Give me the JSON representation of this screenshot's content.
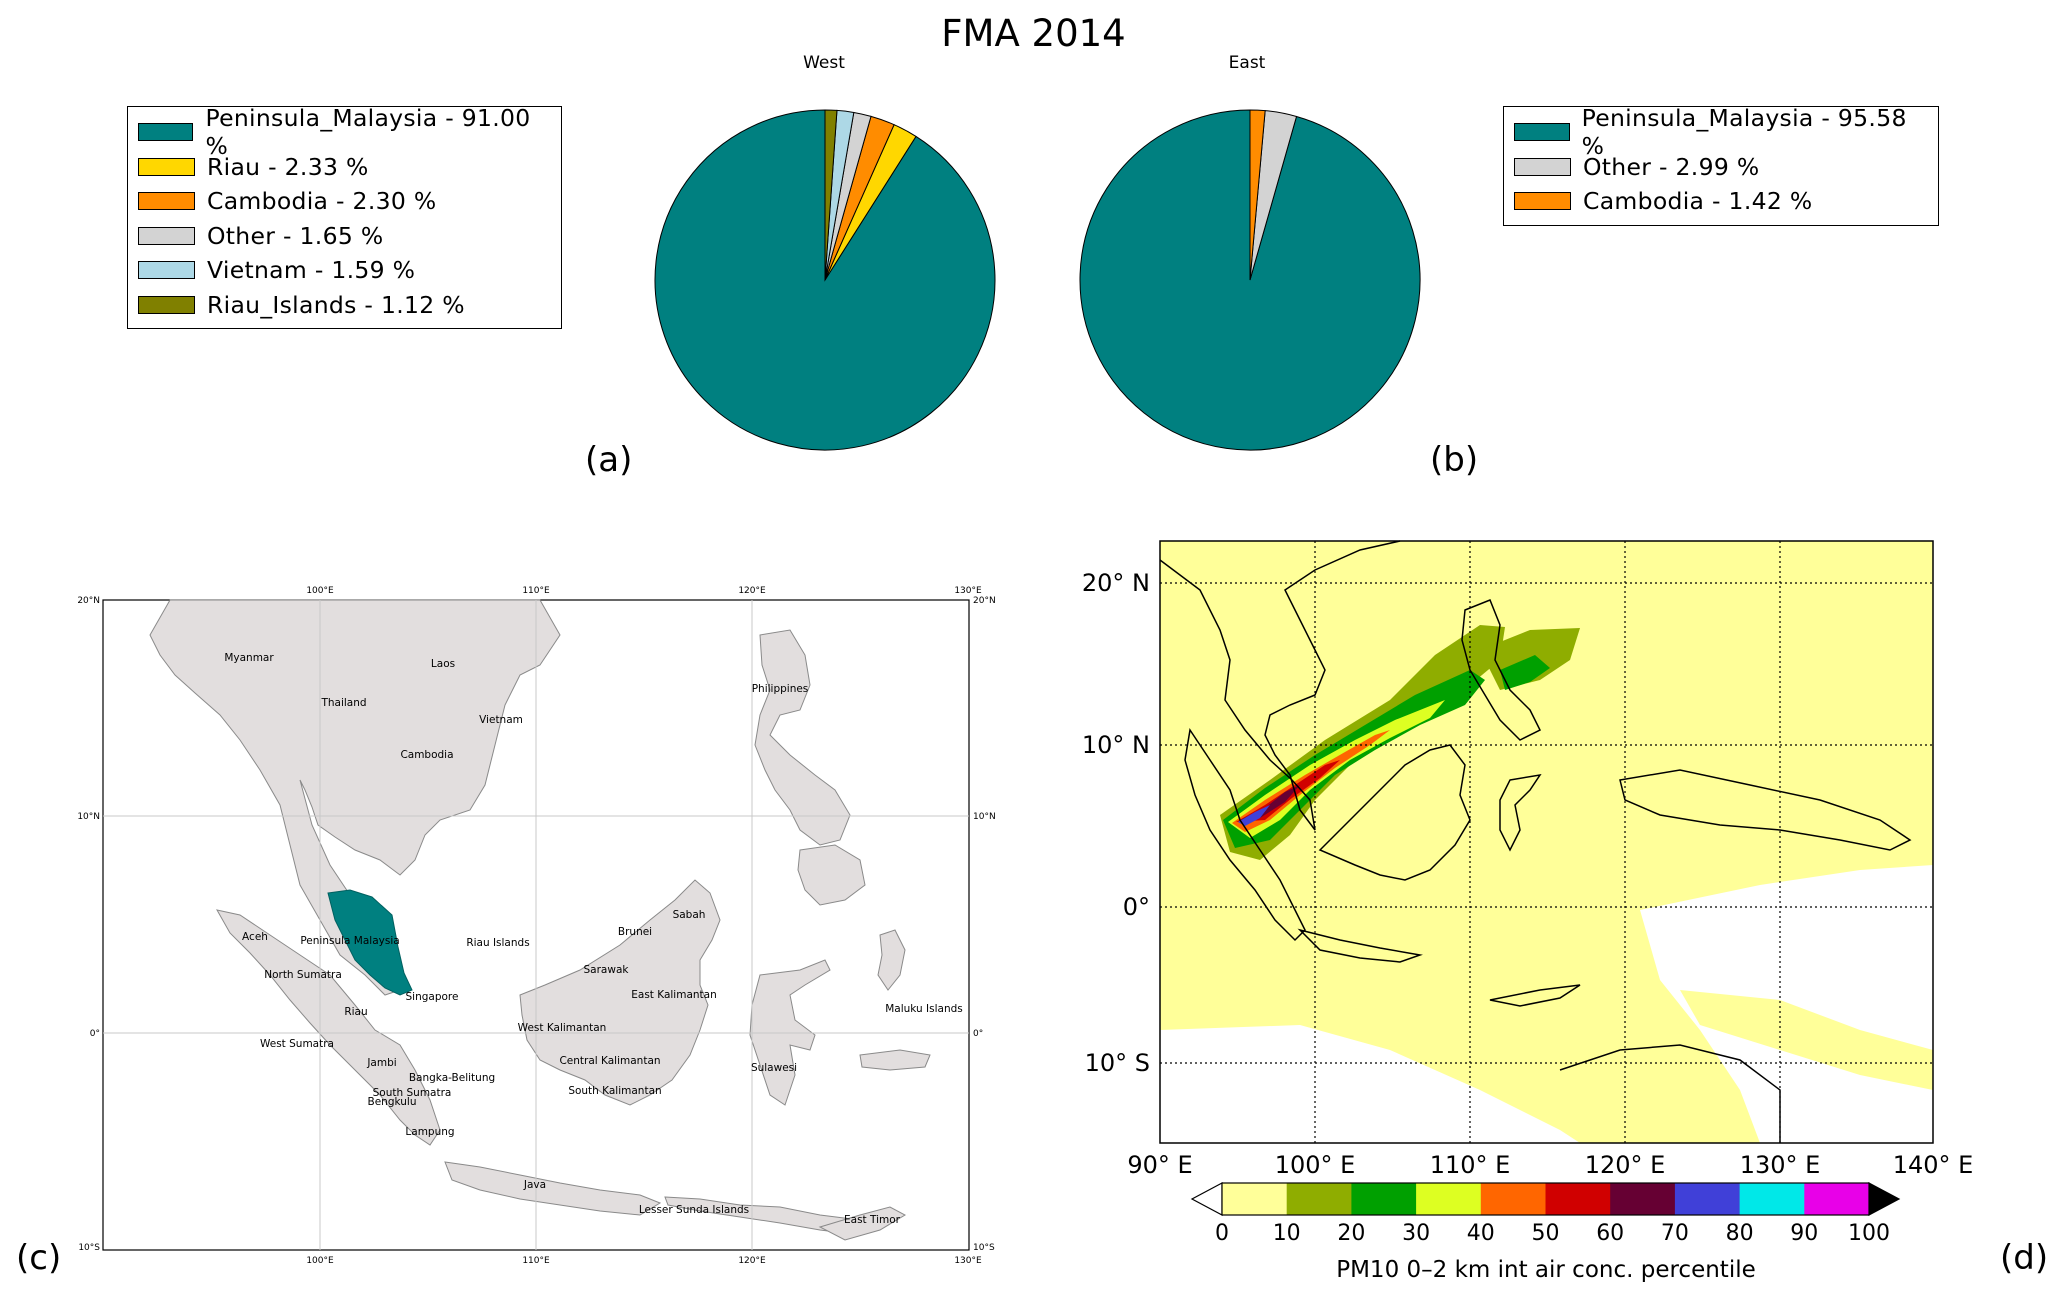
{
  "figure": {
    "title": "FMA 2014",
    "panel_labels": {
      "a": "(a)",
      "b": "(b)",
      "c": "(c)",
      "d": "(d)"
    }
  },
  "colors": {
    "Peninsula_Malaysia": "#008080",
    "Riau": "#ffd700",
    "Cambodia": "#ff8c00",
    "Other": "#d3d3d3",
    "Vietnam": "#add8e6",
    "Riau_Islands": "#808000"
  },
  "legend_west": [
    {
      "label": "Peninsula_Malaysia - 91.00 %",
      "color": "#008080"
    },
    {
      "label": "Riau - 2.33 %",
      "color": "#ffd700"
    },
    {
      "label": "Cambodia - 2.30 %",
      "color": "#ff8c00"
    },
    {
      "label": "Other - 1.65 %",
      "color": "#d3d3d3"
    },
    {
      "label": "Vietnam - 1.59 %",
      "color": "#add8e6"
    },
    {
      "label": "Riau_Islands - 1.12 %",
      "color": "#808000"
    }
  ],
  "legend_east": [
    {
      "label": "Peninsula_Malaysia - 95.58 %",
      "color": "#008080"
    },
    {
      "label": "Other - 2.99 %",
      "color": "#d3d3d3"
    },
    {
      "label": "Cambodia - 1.42 %",
      "color": "#ff8c00"
    }
  ],
  "chart_data": [
    {
      "type": "pie",
      "title": "West",
      "labels": [
        "Peninsula_Malaysia",
        "Riau",
        "Cambodia",
        "Other",
        "Vietnam",
        "Riau_Islands"
      ],
      "values": [
        91.0,
        2.33,
        2.3,
        1.65,
        1.59,
        1.12
      ],
      "colors": [
        "#008080",
        "#ffd700",
        "#ff8c00",
        "#d3d3d3",
        "#add8e6",
        "#808000"
      ]
    },
    {
      "type": "pie",
      "title": "East",
      "labels": [
        "Peninsula_Malaysia",
        "Other",
        "Cambodia"
      ],
      "values": [
        95.58,
        2.99,
        1.42
      ],
      "colors": [
        "#008080",
        "#d3d3d3",
        "#ff8c00"
      ]
    },
    {
      "type": "map",
      "lon_ticks": [
        "100°E",
        "110°E",
        "120°E",
        "130°E"
      ],
      "lat_ticks": [
        "20°N",
        "10°N",
        "0°",
        "10°S"
      ],
      "highlighted_region": "Peninsula_Malaysia",
      "region_labels": [
        "Myanmar",
        "Laos",
        "Thailand",
        "Vietnam",
        "Cambodia",
        "Philippines",
        "Peninsula Malaysia",
        "Riau Islands",
        "Sabah",
        "Aceh",
        "Brunei",
        "North Sumatra",
        "Sarawak",
        "Singapore",
        "East Kalimantan",
        "Riau",
        "West Kalimantan",
        "Maluku Islands",
        "West Sumatra",
        "Jambi",
        "Central Kalimantan",
        "Sulawesi",
        "Bangka-Belitung",
        "South Sumatra",
        "Bengkulu",
        "South Kalimantan",
        "Lampung",
        "Java",
        "Lesser Sunda Islands",
        "East Timor"
      ]
    },
    {
      "type": "heatmap",
      "xlabel_ticks": [
        "90° E",
        "100° E",
        "110° E",
        "120° E",
        "130° E",
        "140° E"
      ],
      "ylabel_ticks": [
        "20° N",
        "10° N",
        "0°",
        "10° S"
      ],
      "colorbar": {
        "label": "PM10 0–2 km int air conc. percentile",
        "ticks": [
          "0",
          "10",
          "20",
          "30",
          "40",
          "50",
          "60",
          "70",
          "80",
          "90",
          "100"
        ],
        "colors": [
          "#ffff99",
          "#8fad00",
          "#00a000",
          "#ddff22",
          "#ff6600",
          "#d00000",
          "#660033",
          "#4040d8",
          "#00e8e8",
          "#e800e8"
        ]
      }
    }
  ]
}
